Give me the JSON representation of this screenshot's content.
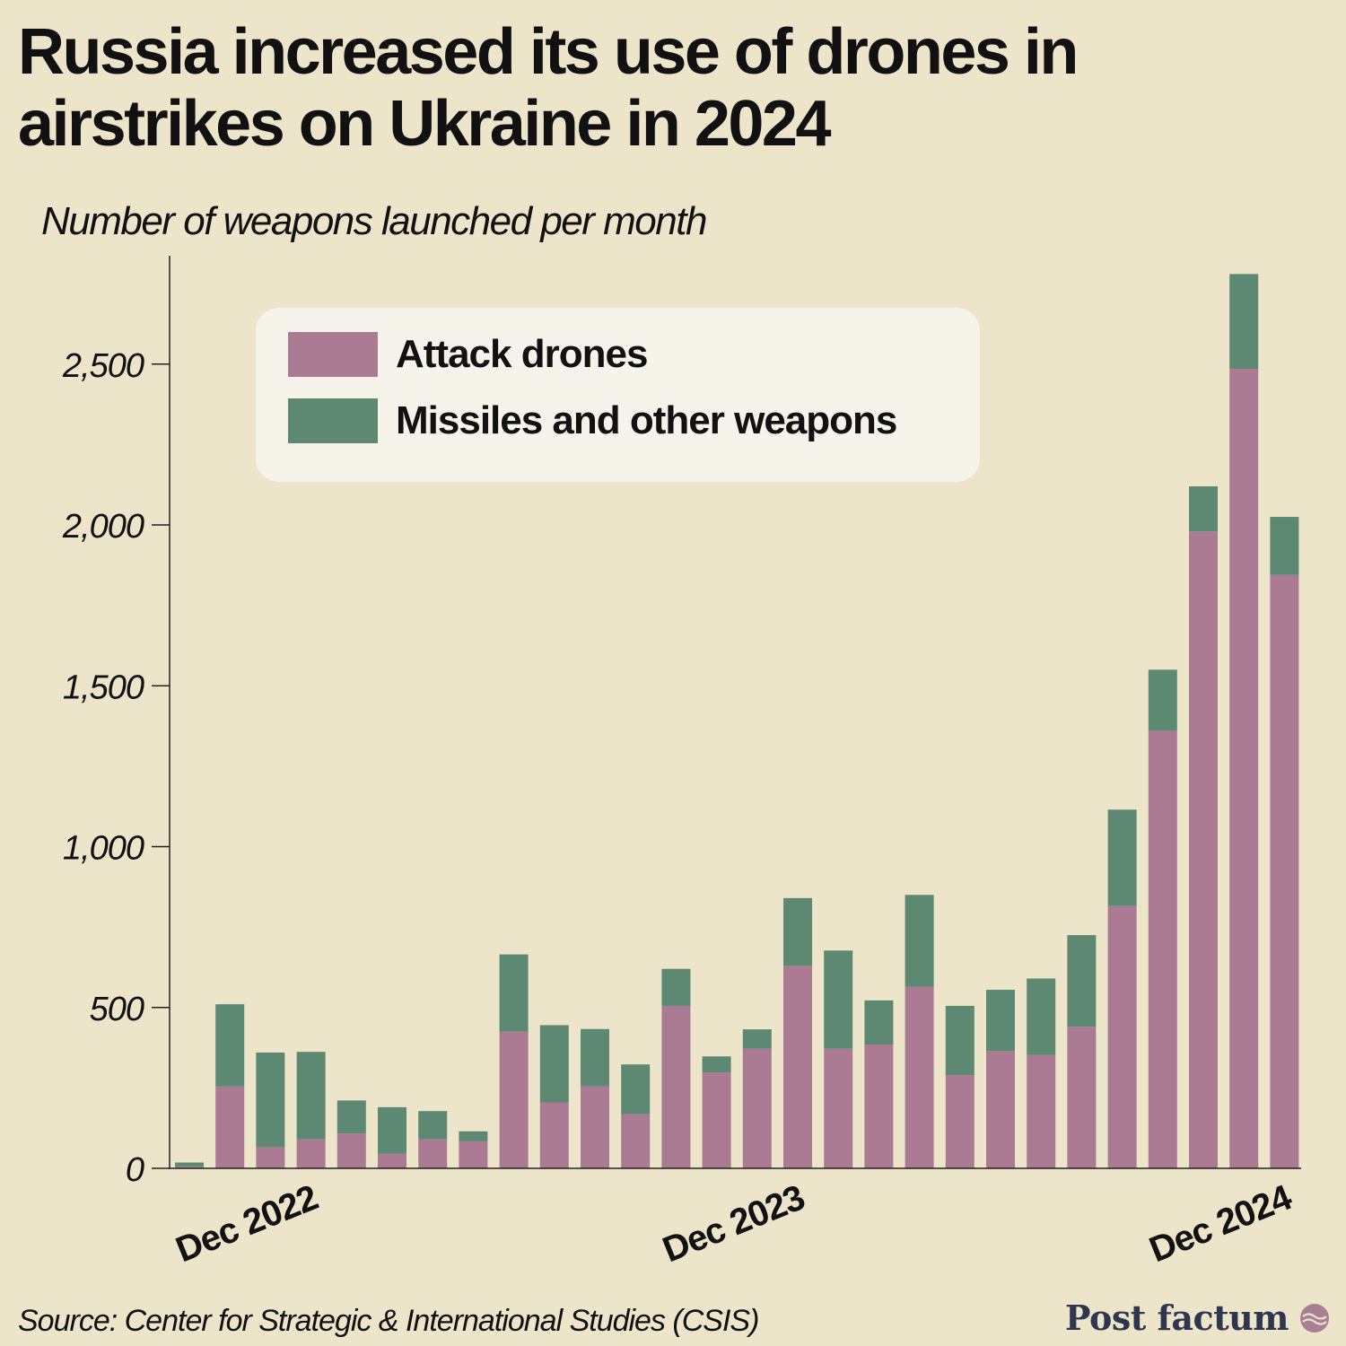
{
  "title": "Russia increased its use of drones in airstrikes on Ukraine in 2024",
  "subtitle": "Number of weapons launched per month",
  "source": "Source: Center for Strategic & International Studies (CSIS)",
  "brand": "Post factum",
  "brand_logo_icon": "wave-circle-icon",
  "colors": {
    "background": "#ece5c9",
    "drones": "#ab7b94",
    "missiles": "#5d8871",
    "legend_bg": "#f6f3eb",
    "brand": "#2e3650"
  },
  "legend": {
    "drones_label": "Attack drones",
    "missiles_label": "Missiles and other weapons"
  },
  "chart_data": {
    "type": "bar",
    "stacked": true,
    "title": "Russia increased its use of drones in airstrikes on Ukraine in 2024",
    "ylabel": "Number of weapons launched per month",
    "xlabel": "",
    "ylim": [
      0,
      2850
    ],
    "yticks": [
      0,
      500,
      1000,
      1500,
      2000,
      2500
    ],
    "ytick_labels": [
      "0",
      "500",
      "1,000",
      "1,500",
      "2,000",
      "2,500"
    ],
    "x_tick_labels": [
      {
        "index": 3,
        "label": "Dec 2022"
      },
      {
        "index": 15,
        "label": "Dec 2023"
      },
      {
        "index": 27,
        "label": "Dec 2024"
      }
    ],
    "categories": [
      "Sep 2022",
      "Oct 2022",
      "Nov 2022",
      "Dec 2022",
      "Jan 2023",
      "Feb 2023",
      "Mar 2023",
      "Apr 2023",
      "May 2023",
      "Jun 2023",
      "Jul 2023",
      "Aug 2023",
      "Sep 2023",
      "Oct 2023",
      "Nov 2023",
      "Dec 2023",
      "Jan 2024",
      "Feb 2024",
      "Mar 2024",
      "Apr 2024",
      "May 2024",
      "Jun 2024",
      "Jul 2024",
      "Aug 2024",
      "Sep 2024",
      "Oct 2024",
      "Nov 2024",
      "Dec 2024"
    ],
    "series": [
      {
        "name": "Attack drones",
        "values": [
          5,
          255,
          65,
          90,
          108,
          45,
          90,
          85,
          425,
          205,
          255,
          168,
          505,
          298,
          372,
          630,
          372,
          385,
          565,
          290,
          365,
          352,
          440,
          815,
          1360,
          1980,
          2485,
          1845
        ]
      },
      {
        "name": "Missiles and other weapons",
        "values": [
          13,
          255,
          295,
          272,
          103,
          145,
          88,
          30,
          240,
          240,
          178,
          155,
          115,
          50,
          60,
          210,
          305,
          137,
          285,
          215,
          190,
          238,
          285,
          300,
          190,
          140,
          295,
          180
        ]
      }
    ]
  }
}
